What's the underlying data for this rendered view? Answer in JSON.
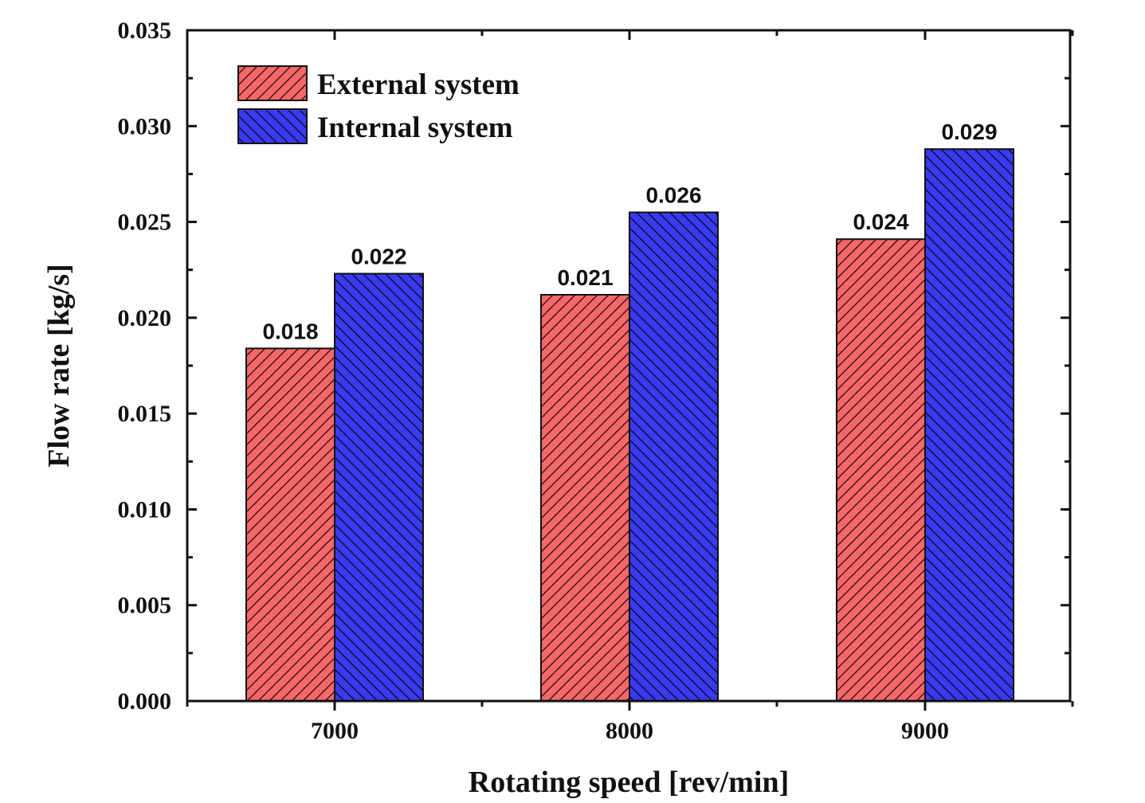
{
  "chart_data": {
    "type": "bar",
    "title": "",
    "xlabel": "Rotating speed [rev/min]",
    "ylabel": "Flow rate [kg/s]",
    "categories": [
      "7000",
      "8000",
      "9000"
    ],
    "ylim": [
      0,
      0.035
    ],
    "yticks": [
      "0.000",
      "0.005",
      "0.010",
      "0.015",
      "0.020",
      "0.025",
      "0.030",
      "0.035"
    ],
    "grid": false,
    "legend_position": "top-left",
    "series": [
      {
        "name": "External system",
        "color": "#f4686a",
        "hatch": "forward-diagonal",
        "values": [
          0.0184,
          0.0212,
          0.0241
        ],
        "labels": [
          "0.018",
          "0.021",
          "0.024"
        ]
      },
      {
        "name": "Internal system",
        "color": "#3a3af0",
        "hatch": "back-diagonal",
        "values": [
          0.0223,
          0.0255,
          0.0288
        ],
        "labels": [
          "0.022",
          "0.026",
          "0.029"
        ]
      }
    ]
  }
}
